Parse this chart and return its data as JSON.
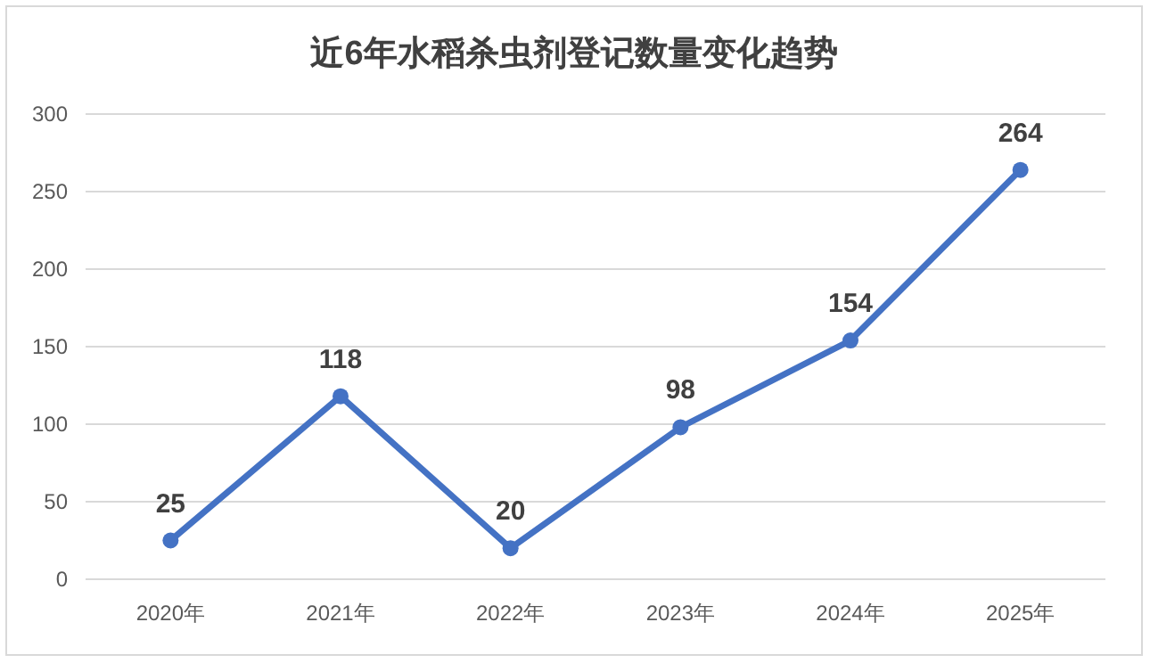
{
  "chart_data": {
    "type": "line",
    "title": "近6年水稻杀虫剂登记数量变化趋势",
    "categories": [
      "2020年",
      "2021年",
      "2022年",
      "2023年",
      "2024年",
      "2025年"
    ],
    "series": [
      {
        "color": "#4472c4",
        "values": [
          25,
          118,
          20,
          98,
          154,
          264
        ]
      }
    ],
    "ylim": [
      0,
      300
    ],
    "yticks": [
      0,
      50,
      100,
      150,
      200,
      250,
      300
    ],
    "grid": "y",
    "data_labels": true,
    "marker": "circle",
    "line_style": "solid"
  }
}
